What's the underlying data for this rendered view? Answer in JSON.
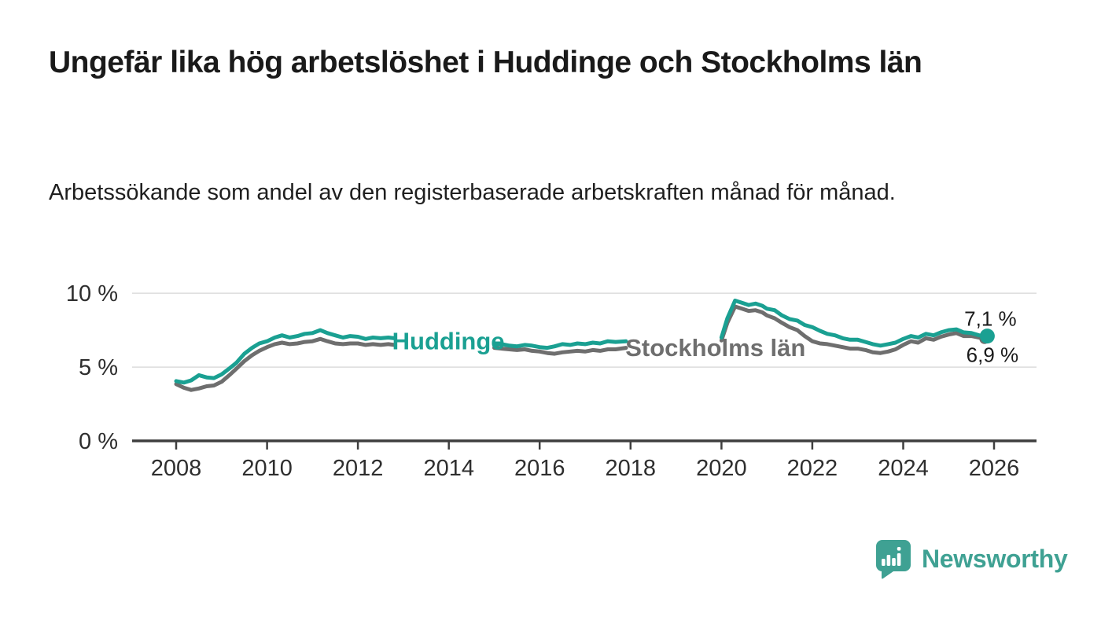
{
  "header": {
    "title": "Ungefär lika hög arbetslöshet i Huddinge och Stockholms län",
    "subtitle": "Arbetssökande som andel av den registerbaserade arbetskraften månad för månad."
  },
  "footer": {
    "brand": "Newsworthy"
  },
  "colors": {
    "huddinge": "#1aa092",
    "stockholm": "#6e6e6e",
    "grid": "#dcdcdc",
    "axis": "#3f3f3f",
    "tick_text": "#2e2e2e",
    "value_text": "#1a1a1a",
    "logo": "#3fa193"
  },
  "chart_data": {
    "type": "line",
    "title": "Ungefär lika hög arbetslöshet i Huddinge och Stockholms län",
    "subtitle": "Arbetssökande som andel av den registerbaserade arbetskraften månad för månad.",
    "x_unit": "decimal_year",
    "y_unit": "percent",
    "grid": "horizontal",
    "legend_position": "inline",
    "x_axis": {
      "min": 2007.0,
      "max": 2026.9,
      "ticks": [
        2008,
        2010,
        2012,
        2014,
        2016,
        2018,
        2020,
        2022,
        2024,
        2026
      ]
    },
    "y_axis": {
      "min": 0,
      "max": 10.5,
      "ticks": [
        {
          "value": 0,
          "label": "0 %"
        },
        {
          "value": 5,
          "label": "5 %"
        },
        {
          "value": 10,
          "label": "10 %"
        }
      ]
    },
    "series": [
      {
        "name": "Stockholms län",
        "color_key": "stockholm",
        "latest_value": 6.9,
        "latest_label": "6,9 %",
        "end_label_position": "below",
        "segments": [
          [
            [
              2008.0,
              3.85
            ],
            [
              2008.17,
              3.6
            ],
            [
              2008.33,
              3.45
            ],
            [
              2008.5,
              3.55
            ],
            [
              2008.67,
              3.7
            ],
            [
              2008.83,
              3.75
            ],
            [
              2009.0,
              4.0
            ],
            [
              2009.17,
              4.45
            ],
            [
              2009.33,
              4.9
            ],
            [
              2009.5,
              5.4
            ],
            [
              2009.67,
              5.8
            ],
            [
              2009.83,
              6.1
            ],
            [
              2010.0,
              6.35
            ],
            [
              2010.17,
              6.55
            ],
            [
              2010.33,
              6.65
            ],
            [
              2010.5,
              6.55
            ],
            [
              2010.67,
              6.6
            ],
            [
              2010.83,
              6.7
            ],
            [
              2011.0,
              6.75
            ],
            [
              2011.17,
              6.9
            ],
            [
              2011.33,
              6.75
            ],
            [
              2011.5,
              6.6
            ],
            [
              2011.67,
              6.55
            ],
            [
              2011.83,
              6.6
            ],
            [
              2012.0,
              6.6
            ],
            [
              2012.17,
              6.5
            ],
            [
              2012.33,
              6.55
            ],
            [
              2012.5,
              6.5
            ],
            [
              2012.67,
              6.55
            ],
            [
              2012.8,
              6.5
            ]
          ],
          [
            [
              2015.0,
              6.3
            ],
            [
              2015.17,
              6.25
            ],
            [
              2015.33,
              6.2
            ],
            [
              2015.5,
              6.15
            ],
            [
              2015.67,
              6.2
            ],
            [
              2015.83,
              6.1
            ],
            [
              2016.0,
              6.05
            ],
            [
              2016.17,
              5.95
            ],
            [
              2016.33,
              5.9
            ],
            [
              2016.5,
              6.0
            ],
            [
              2016.67,
              6.05
            ],
            [
              2016.83,
              6.1
            ],
            [
              2017.0,
              6.05
            ],
            [
              2017.17,
              6.15
            ],
            [
              2017.33,
              6.1
            ],
            [
              2017.5,
              6.2
            ],
            [
              2017.67,
              6.2
            ],
            [
              2017.9,
              6.3
            ]
          ],
          [
            [
              2020.0,
              6.8
            ],
            [
              2020.13,
              8.0
            ],
            [
              2020.3,
              9.1
            ],
            [
              2020.45,
              8.95
            ],
            [
              2020.6,
              8.8
            ],
            [
              2020.75,
              8.85
            ],
            [
              2020.9,
              8.7
            ],
            [
              2021.0,
              8.5
            ],
            [
              2021.17,
              8.3
            ],
            [
              2021.33,
              8.0
            ],
            [
              2021.5,
              7.7
            ],
            [
              2021.67,
              7.5
            ],
            [
              2021.83,
              7.1
            ],
            [
              2022.0,
              6.75
            ],
            [
              2022.17,
              6.6
            ],
            [
              2022.33,
              6.55
            ],
            [
              2022.5,
              6.45
            ],
            [
              2022.67,
              6.35
            ],
            [
              2022.83,
              6.25
            ],
            [
              2023.0,
              6.25
            ],
            [
              2023.17,
              6.15
            ],
            [
              2023.33,
              6.0
            ],
            [
              2023.5,
              5.95
            ],
            [
              2023.67,
              6.05
            ],
            [
              2023.83,
              6.2
            ],
            [
              2024.0,
              6.5
            ],
            [
              2024.17,
              6.75
            ],
            [
              2024.33,
              6.65
            ],
            [
              2024.5,
              6.95
            ],
            [
              2024.67,
              6.85
            ],
            [
              2024.83,
              7.05
            ],
            [
              2025.0,
              7.2
            ],
            [
              2025.17,
              7.3
            ],
            [
              2025.33,
              7.1
            ],
            [
              2025.5,
              7.1
            ],
            [
              2025.67,
              7.0
            ],
            [
              2025.79,
              6.9
            ]
          ]
        ]
      },
      {
        "name": "Huddinge",
        "color_key": "huddinge",
        "latest_value": 7.1,
        "latest_label": "7,1 %",
        "end_label_position": "above",
        "segments": [
          [
            [
              2008.0,
              4.05
            ],
            [
              2008.17,
              3.95
            ],
            [
              2008.33,
              4.1
            ],
            [
              2008.5,
              4.45
            ],
            [
              2008.67,
              4.3
            ],
            [
              2008.83,
              4.25
            ],
            [
              2009.0,
              4.5
            ],
            [
              2009.17,
              4.9
            ],
            [
              2009.33,
              5.3
            ],
            [
              2009.5,
              5.9
            ],
            [
              2009.67,
              6.3
            ],
            [
              2009.83,
              6.6
            ],
            [
              2010.0,
              6.75
            ],
            [
              2010.17,
              7.0
            ],
            [
              2010.33,
              7.15
            ],
            [
              2010.5,
              7.0
            ],
            [
              2010.67,
              7.1
            ],
            [
              2010.83,
              7.25
            ],
            [
              2011.0,
              7.3
            ],
            [
              2011.17,
              7.5
            ],
            [
              2011.33,
              7.3
            ],
            [
              2011.5,
              7.15
            ],
            [
              2011.67,
              7.0
            ],
            [
              2011.83,
              7.1
            ],
            [
              2012.0,
              7.05
            ],
            [
              2012.17,
              6.9
            ],
            [
              2012.33,
              7.0
            ],
            [
              2012.5,
              6.95
            ],
            [
              2012.67,
              7.0
            ],
            [
              2012.8,
              6.95
            ]
          ],
          [
            [
              2015.0,
              6.5
            ],
            [
              2015.17,
              6.55
            ],
            [
              2015.33,
              6.45
            ],
            [
              2015.5,
              6.4
            ],
            [
              2015.67,
              6.5
            ],
            [
              2015.83,
              6.45
            ],
            [
              2016.0,
              6.35
            ],
            [
              2016.17,
              6.3
            ],
            [
              2016.33,
              6.4
            ],
            [
              2016.5,
              6.55
            ],
            [
              2016.67,
              6.5
            ],
            [
              2016.83,
              6.6
            ],
            [
              2017.0,
              6.55
            ],
            [
              2017.17,
              6.65
            ],
            [
              2017.33,
              6.6
            ],
            [
              2017.5,
              6.75
            ],
            [
              2017.67,
              6.7
            ],
            [
              2017.9,
              6.75
            ]
          ],
          [
            [
              2020.0,
              7.0
            ],
            [
              2020.13,
              8.3
            ],
            [
              2020.3,
              9.5
            ],
            [
              2020.45,
              9.35
            ],
            [
              2020.6,
              9.2
            ],
            [
              2020.75,
              9.3
            ],
            [
              2020.9,
              9.15
            ],
            [
              2021.0,
              8.95
            ],
            [
              2021.17,
              8.85
            ],
            [
              2021.33,
              8.5
            ],
            [
              2021.5,
              8.25
            ],
            [
              2021.67,
              8.15
            ],
            [
              2021.83,
              7.85
            ],
            [
              2022.0,
              7.7
            ],
            [
              2022.17,
              7.45
            ],
            [
              2022.33,
              7.25
            ],
            [
              2022.5,
              7.15
            ],
            [
              2022.67,
              6.95
            ],
            [
              2022.83,
              6.85
            ],
            [
              2023.0,
              6.85
            ],
            [
              2023.17,
              6.7
            ],
            [
              2023.33,
              6.55
            ],
            [
              2023.5,
              6.45
            ],
            [
              2023.67,
              6.55
            ],
            [
              2023.83,
              6.65
            ],
            [
              2024.0,
              6.9
            ],
            [
              2024.17,
              7.1
            ],
            [
              2024.33,
              7.0
            ],
            [
              2024.5,
              7.25
            ],
            [
              2024.67,
              7.15
            ],
            [
              2024.83,
              7.35
            ],
            [
              2025.0,
              7.5
            ],
            [
              2025.17,
              7.55
            ],
            [
              2025.33,
              7.35
            ],
            [
              2025.5,
              7.3
            ],
            [
              2025.67,
              7.15
            ],
            [
              2025.85,
              7.1
            ]
          ]
        ]
      }
    ],
    "inline_labels": [
      {
        "text": "Huddinge",
        "color_key": "huddinge",
        "year": 2013.99,
        "value": 6.2
      },
      {
        "text": "Stockholms län",
        "color_key": "stockholm",
        "year": 2019.87,
        "value": 5.75
      }
    ]
  }
}
